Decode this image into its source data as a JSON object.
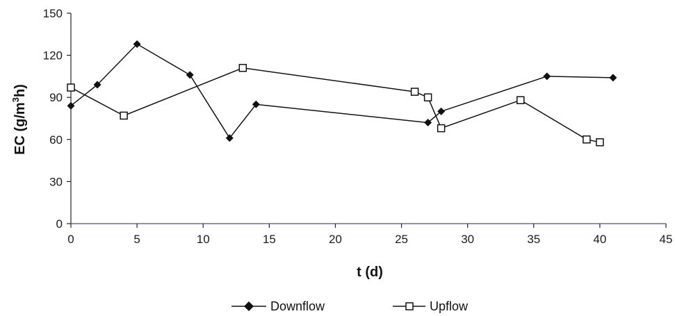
{
  "chart_data": {
    "type": "line",
    "xlabel": "t (d)",
    "ylabel_main": "EC (g/m",
    "ylabel_sup": "3",
    "ylabel_end": "h)",
    "xlim": [
      0,
      45
    ],
    "ylim": [
      0,
      150
    ],
    "x_ticks": [
      0,
      5,
      10,
      15,
      20,
      25,
      30,
      35,
      40,
      45
    ],
    "y_ticks": [
      0,
      30,
      60,
      90,
      120,
      150
    ],
    "grid": false,
    "legend_position": "bottom",
    "series": [
      {
        "name": "Downflow",
        "marker": "diamond",
        "color": "#111111",
        "x": [
          0,
          2,
          5,
          9,
          12,
          14,
          27,
          28,
          36,
          41
        ],
        "y": [
          84,
          99,
          128,
          106,
          61,
          85,
          72,
          80,
          105,
          104
        ]
      },
      {
        "name": "Upflow",
        "marker": "square",
        "color": "#111111",
        "x": [
          0,
          4,
          13,
          26,
          27,
          28,
          34,
          39,
          40
        ],
        "y": [
          97,
          77,
          111,
          94,
          90,
          68,
          88,
          60,
          58
        ]
      }
    ]
  }
}
